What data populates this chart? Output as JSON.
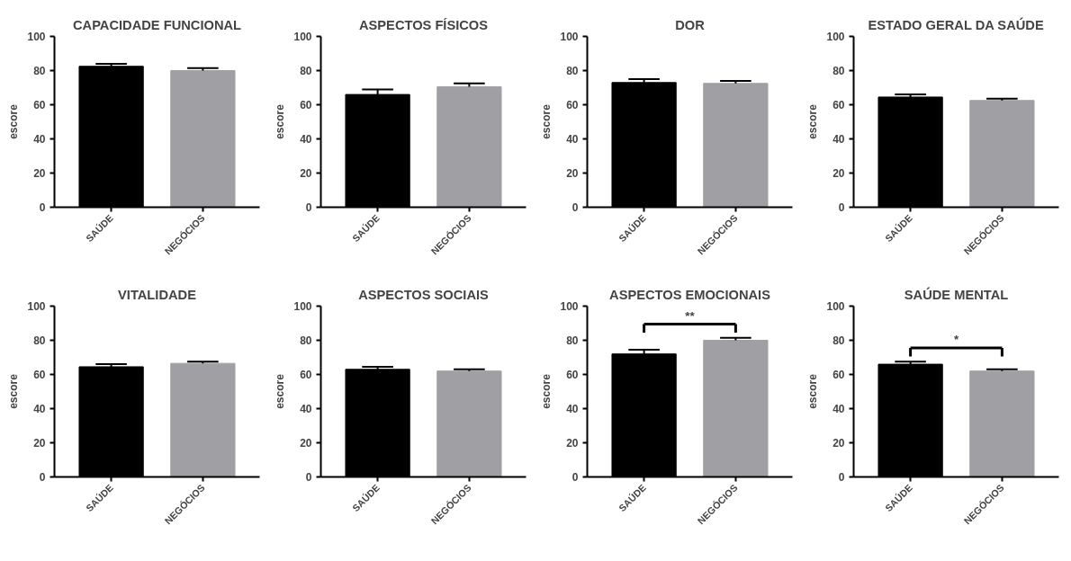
{
  "chart_data": [
    {
      "type": "bar",
      "title": "CAPACIDADE FUNCIONAL",
      "ylabel": "escore",
      "categories": [
        "SAÚDE",
        "NEGÓCIOS"
      ],
      "values": [
        82.5,
        80
      ],
      "colors": [
        "#000000",
        "#a0a0a4"
      ],
      "errors": [
        [
          82.5,
          84
        ],
        [
          80,
          81.5
        ]
      ],
      "ylim": [
        0,
        100
      ],
      "yticks": [
        0,
        20,
        40,
        60,
        80,
        100
      ],
      "grid": false
    },
    {
      "type": "bar",
      "title": "ASPECTOS FÍSICOS",
      "ylabel": "escore",
      "categories": [
        "SAÚDE",
        "NEGÓCIOS"
      ],
      "values": [
        66,
        70.5
      ],
      "colors": [
        "#000000",
        "#a0a0a4"
      ],
      "errors": [
        [
          66,
          69
        ],
        [
          70.5,
          72.5
        ]
      ],
      "ylim": [
        0,
        100
      ],
      "yticks": [
        0,
        20,
        40,
        60,
        80,
        100
      ],
      "grid": false
    },
    {
      "type": "bar",
      "title": "DOR",
      "ylabel": "escore",
      "categories": [
        "SAÚDE",
        "NEGÓCIOS"
      ],
      "values": [
        73,
        72.5
      ],
      "colors": [
        "#000000",
        "#a0a0a4"
      ],
      "errors": [
        [
          73,
          75
        ],
        [
          72.5,
          74
        ]
      ],
      "ylim": [
        0,
        100
      ],
      "yticks": [
        0,
        20,
        40,
        60,
        80,
        100
      ],
      "grid": false
    },
    {
      "type": "bar",
      "title": "ESTADO GERAL DA SAÚDE",
      "ylabel": "escore",
      "categories": [
        "SAÚDE",
        "NEGÓCIOS"
      ],
      "values": [
        64.5,
        62.5
      ],
      "colors": [
        "#000000",
        "#a0a0a4"
      ],
      "errors": [
        [
          64.5,
          66
        ],
        [
          62.5,
          63.5
        ]
      ],
      "ylim": [
        0,
        100
      ],
      "yticks": [
        0,
        20,
        40,
        60,
        80,
        100
      ],
      "grid": false
    },
    {
      "type": "bar",
      "title": "VITALIDADE",
      "ylabel": "escore",
      "categories": [
        "SAÚDE",
        "NEGÓCIOS"
      ],
      "values": [
        64.5,
        66.5
      ],
      "colors": [
        "#000000",
        "#a0a0a4"
      ],
      "errors": [
        [
          64.5,
          66
        ],
        [
          66.5,
          67.5
        ]
      ],
      "ylim": [
        0,
        100
      ],
      "yticks": [
        0,
        20,
        40,
        60,
        80,
        100
      ],
      "grid": false
    },
    {
      "type": "bar",
      "title": "ASPECTOS SOCIAIS",
      "ylabel": "escore",
      "categories": [
        "SAÚDE",
        "NEGÓCIOS"
      ],
      "values": [
        63,
        62
      ],
      "colors": [
        "#000000",
        "#a0a0a4"
      ],
      "errors": [
        [
          63,
          64.5
        ],
        [
          62,
          63
        ]
      ],
      "ylim": [
        0,
        100
      ],
      "yticks": [
        0,
        20,
        40,
        60,
        80,
        100
      ],
      "grid": false
    },
    {
      "type": "bar",
      "title": "ASPECTOS EMOCIONAIS",
      "ylabel": "escore",
      "categories": [
        "SAÚDE",
        "NEGÓCIOS"
      ],
      "values": [
        72,
        80
      ],
      "colors": [
        "#000000",
        "#a0a0a4"
      ],
      "errors": [
        [
          72,
          74.5
        ],
        [
          80,
          81.5
        ]
      ],
      "ylim": [
        0,
        100
      ],
      "yticks": [
        0,
        20,
        40,
        60,
        80,
        100
      ],
      "grid": false,
      "annotations": [
        "**"
      ]
    },
    {
      "type": "bar",
      "title": "SAÚDE MENTAL",
      "ylabel": "escore",
      "categories": [
        "SAÚDE",
        "NEGÓCIOS"
      ],
      "values": [
        66,
        62
      ],
      "colors": [
        "#000000",
        "#a0a0a4"
      ],
      "errors": [
        [
          66,
          67.5
        ],
        [
          62,
          63
        ]
      ],
      "ylim": [
        0,
        100
      ],
      "yticks": [
        0,
        20,
        40,
        60,
        80,
        100
      ],
      "grid": false,
      "annotations": [
        "*"
      ]
    }
  ]
}
